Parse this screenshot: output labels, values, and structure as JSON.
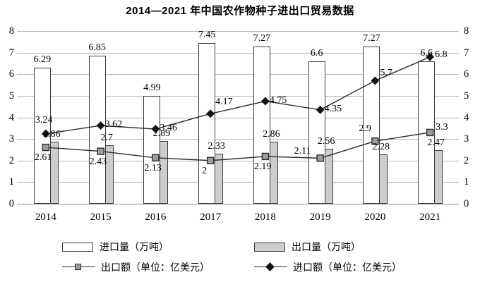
{
  "title": "2014—2021 年中国农作物种子进出口贸易数据",
  "chart_data": {
    "type": "combo-bar-line",
    "categories": [
      "2014",
      "2015",
      "2016",
      "2017",
      "2018",
      "2019",
      "2020",
      "2021"
    ],
    "series": [
      {
        "name": "进口量（万吨）",
        "kind": "bar",
        "variant": "white",
        "values": [
          6.29,
          6.85,
          4.99,
          7.45,
          7.27,
          6.6,
          7.27,
          6.6
        ]
      },
      {
        "name": "出口量（万吨）",
        "kind": "bar",
        "variant": "gray",
        "values": [
          2.86,
          2.7,
          2.89,
          2.33,
          2.86,
          2.56,
          2.28,
          2.47
        ]
      },
      {
        "name": "出口额（单位：亿美元）",
        "kind": "line",
        "marker": "square",
        "values": [
          2.61,
          2.43,
          2.13,
          2,
          2.19,
          2.11,
          2.9,
          3.3
        ]
      },
      {
        "name": "进口额（单位：亿美元）",
        "kind": "line",
        "marker": "diamond",
        "values": [
          3.24,
          3.62,
          3.46,
          4.17,
          4.75,
          4.35,
          5.7,
          6.8
        ]
      }
    ],
    "y_axis": {
      "min": 0,
      "max": 8,
      "ticks": [
        0,
        1,
        2,
        3,
        4,
        5,
        6,
        7,
        8
      ],
      "dual": true
    },
    "grid": "horizontal",
    "legend_position": "bottom",
    "label_offsets": {
      "square": [
        [
          -16,
          7
        ],
        [
          -16,
          7
        ],
        [
          -16,
          7
        ],
        [
          -12,
          7
        ],
        [
          -16,
          7
        ],
        [
          -37,
          -17
        ],
        [
          -23,
          -25
        ],
        [
          8,
          -15
        ]
      ],
      "diamond": [
        [
          -15,
          -27
        ],
        [
          6,
          -9
        ],
        [
          6,
          -9
        ],
        [
          7,
          -24
        ],
        [
          6,
          -9
        ],
        [
          6,
          -9
        ],
        [
          7,
          -18
        ],
        [
          7,
          -11
        ]
      ]
    },
    "colors": {
      "bar_white": "#ffffff",
      "bar_gray": "#cdcdcd",
      "bar_border": "#3c3c3c",
      "line": "#2b2b2b",
      "square_fill": "#9e9e9e",
      "diamond_fill": "#141414",
      "grid": "#b5b5b5",
      "axis": "#8a8a8a",
      "text": "#000000"
    }
  },
  "legend": {
    "items": [
      {
        "label": "进口量（万吨）",
        "swatch": "bar-white"
      },
      {
        "label": "出口量（万吨）",
        "swatch": "bar-gray"
      },
      {
        "label": "出口额（单位：亿美元）",
        "swatch": "line-square"
      },
      {
        "label": "进口额（单位：亿美元）",
        "swatch": "line-diamond"
      }
    ]
  }
}
